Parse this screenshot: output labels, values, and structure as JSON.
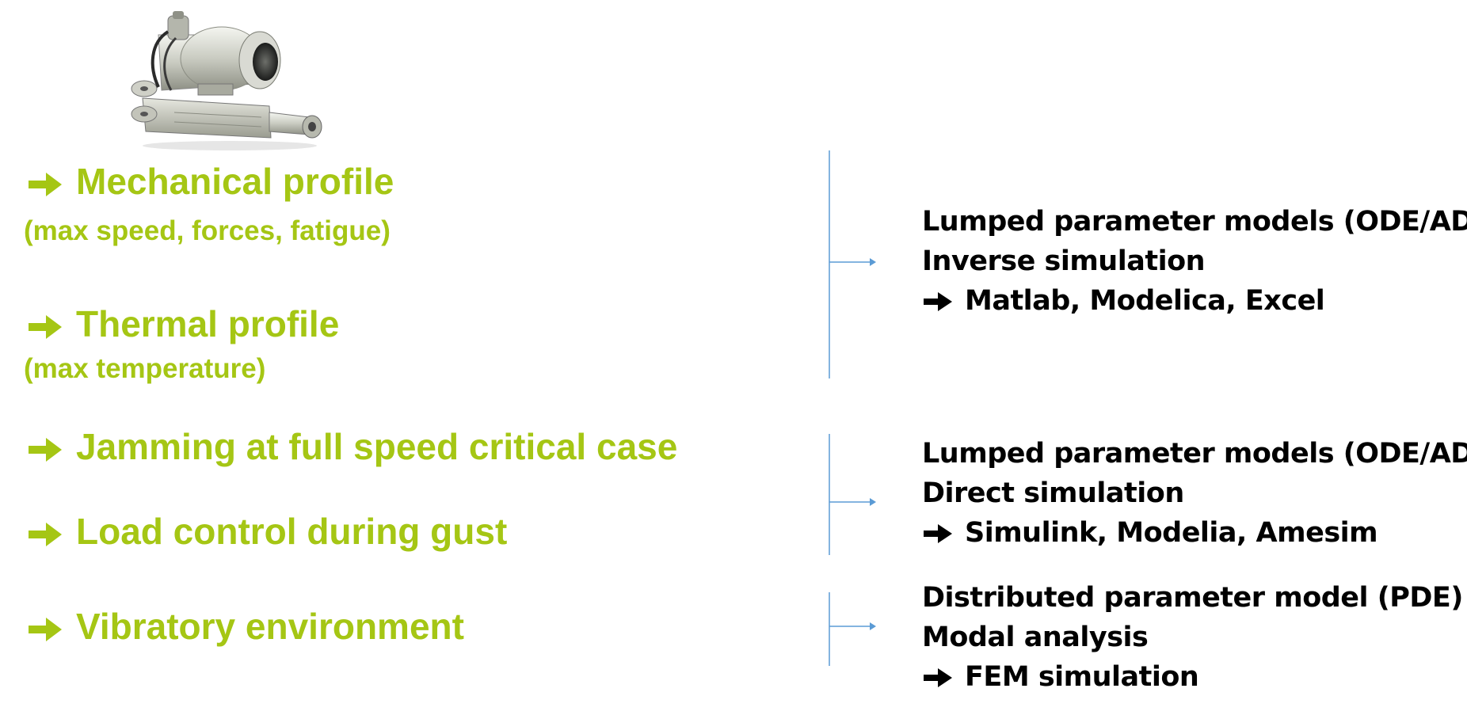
{
  "colors": {
    "requirement_green": "#a5c614",
    "bracket_blue": "#5b9bd5",
    "method_text": "#000000"
  },
  "image": {
    "name": "electromechanical-actuator-photo"
  },
  "requirements": [
    {
      "title": "Mechanical profile",
      "subtitle": "(max speed, forces, fatigue)"
    },
    {
      "title": "Thermal profile",
      "subtitle": "(max temperature)"
    },
    {
      "title": "Jamming at full speed critical case"
    },
    {
      "title": "Load control during gust"
    },
    {
      "title": "Vibratory environment"
    }
  ],
  "methods": [
    {
      "model": "Lumped parameter models (ODE/ADE)",
      "approach": "Inverse simulation",
      "tools": "Matlab, Modelica, Excel"
    },
    {
      "model": "Lumped parameter models (ODE/ADE)",
      "approach": "Direct simulation",
      "tools": "Simulink, Modelia, Amesim"
    },
    {
      "model": "Distributed parameter model (PDE)",
      "approach": "Modal analysis",
      "tools": "FEM simulation"
    }
  ]
}
